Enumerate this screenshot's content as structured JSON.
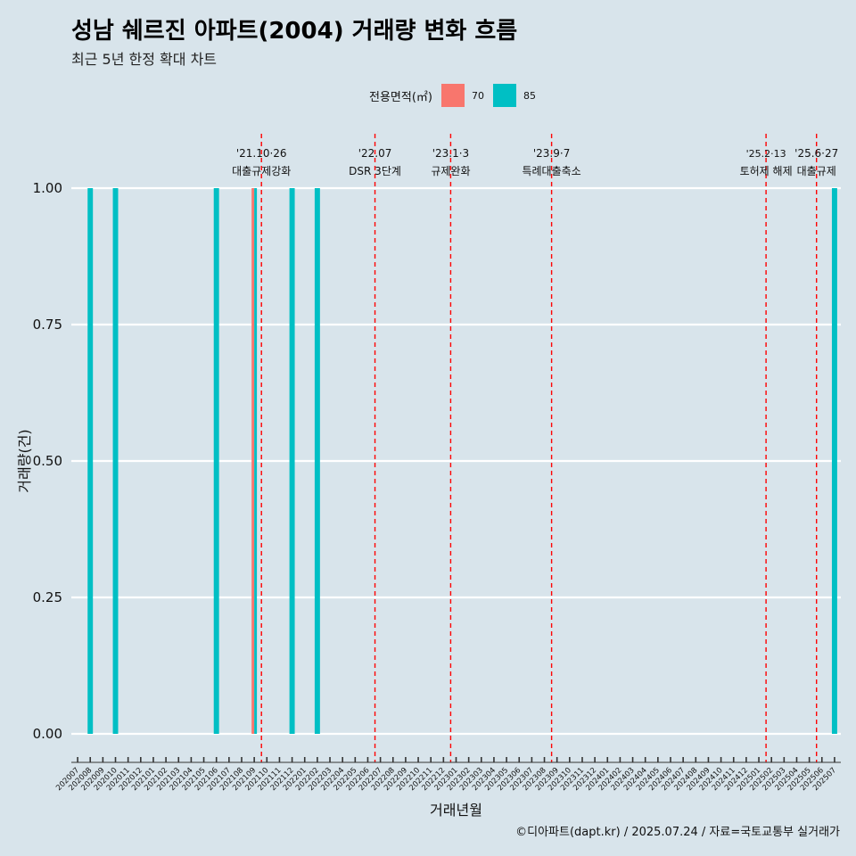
{
  "header": {
    "title": "성남 쉐르진 아파트(2004) 거래량 변화 흐름",
    "subtitle": "최근 5년 한정 확대 차트"
  },
  "legend": {
    "title": "전용면적(㎡)",
    "items": [
      {
        "label": "70",
        "color": "#f8766d"
      },
      {
        "label": "85",
        "color": "#00bfc4"
      }
    ]
  },
  "caption": "©디아파트(dapt.kr) / 2025.07.24 / 자료=국토교통부 실거래가",
  "chart_data": {
    "type": "bar",
    "title": "성남 쉐르진 아파트(2004) 거래량 변화 흐름",
    "subtitle": "최근 5년 한정 확대 차트",
    "xlabel": "거래년월",
    "ylabel": "거래량(건)",
    "ylim": [
      0,
      1
    ],
    "yticks": [
      "0.00",
      "0.25",
      "0.50",
      "0.75",
      "1.00"
    ],
    "grid": "horizontal",
    "legend_position": "top",
    "categories": [
      "202007",
      "202008",
      "202009",
      "202010",
      "202011",
      "202012",
      "202101",
      "202102",
      "202103",
      "202104",
      "202105",
      "202106",
      "202107",
      "202108",
      "202109",
      "202110",
      "202111",
      "202112",
      "202201",
      "202202",
      "202203",
      "202204",
      "202205",
      "202206",
      "202207",
      "202208",
      "202209",
      "202210",
      "202211",
      "202212",
      "202301",
      "202302",
      "202303",
      "202304",
      "202305",
      "202306",
      "202307",
      "202308",
      "202309",
      "202310",
      "202311",
      "202312",
      "202401",
      "202402",
      "202403",
      "202404",
      "202405",
      "202406",
      "202407",
      "202408",
      "202409",
      "202410",
      "202411",
      "202412",
      "202501",
      "202502",
      "202503",
      "202504",
      "202505",
      "202506",
      "202507"
    ],
    "series": [
      {
        "name": "70",
        "color": "#f8766d",
        "points": [
          {
            "x": "202109",
            "y": 1
          }
        ]
      },
      {
        "name": "85",
        "color": "#00bfc4",
        "points": [
          {
            "x": "202008",
            "y": 1
          },
          {
            "x": "202010",
            "y": 1
          },
          {
            "x": "202106",
            "y": 1
          },
          {
            "x": "202109",
            "y": 1
          },
          {
            "x": "202112",
            "y": 1
          },
          {
            "x": "202202",
            "y": 1
          },
          {
            "x": "202507",
            "y": 1
          }
        ]
      }
    ],
    "annotations": [
      {
        "x": "202110",
        "line1": "'21.10·26",
        "line2": "대출규제강화"
      },
      {
        "x": "202207",
        "line1": "'22.07",
        "line2": "DSR 3단계"
      },
      {
        "x": "202301",
        "line1": "'23.1·3",
        "line2": "규제완화"
      },
      {
        "x": "202309",
        "line1": "'23.9·7",
        "line2": "특례대출축소"
      },
      {
        "x": "202502",
        "line1": "'25.2·13",
        "line2": "토허제 해제"
      },
      {
        "x": "202506",
        "line1": "'25.6·27",
        "line2": "대출규제"
      }
    ]
  }
}
